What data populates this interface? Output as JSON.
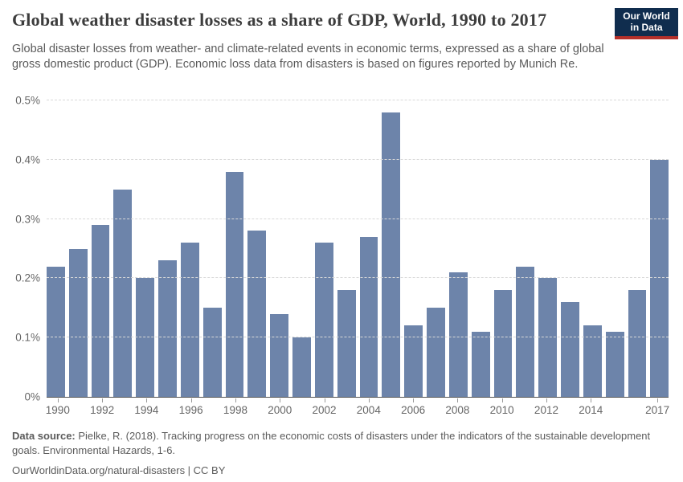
{
  "header": {
    "title": "Global weather disaster losses as a share of GDP, World, 1990 to 2017",
    "subtitle": "Global disaster losses from weather- and climate-related events in economic terms, expressed as a share of global gross domestic product (GDP). Economic loss data from disasters is based on figures reported by Munich Re.",
    "logo": {
      "line1": "Our World",
      "line2": "in Data",
      "bg_color": "#102d4e",
      "accent_color": "#b5302a"
    }
  },
  "chart_data": {
    "type": "bar",
    "title": "Global weather disaster losses as a share of GDP, World, 1990 to 2017",
    "categories": [
      1990,
      1991,
      1992,
      1993,
      1994,
      1995,
      1996,
      1997,
      1998,
      1999,
      2000,
      2001,
      2002,
      2003,
      2004,
      2005,
      2006,
      2007,
      2008,
      2009,
      2010,
      2011,
      2012,
      2013,
      2014,
      2015,
      2016,
      2017
    ],
    "values": [
      0.22,
      0.25,
      0.29,
      0.35,
      0.2,
      0.23,
      0.26,
      0.15,
      0.38,
      0.28,
      0.14,
      0.1,
      0.26,
      0.18,
      0.27,
      0.48,
      0.12,
      0.15,
      0.21,
      0.11,
      0.18,
      0.22,
      0.2,
      0.16,
      0.12,
      0.11,
      0.18,
      0.4
    ],
    "unit": "%",
    "xlabel": "",
    "ylabel": "",
    "ylim": [
      0,
      0.5
    ],
    "y_tick_values": [
      0,
      0.1,
      0.2,
      0.3,
      0.4,
      0.5
    ],
    "y_tick_labels": [
      "0%",
      "0.1%",
      "0.2%",
      "0.3%",
      "0.4%",
      "0.5%"
    ],
    "x_tick_years": [
      1990,
      1992,
      1994,
      1996,
      1998,
      2000,
      2002,
      2004,
      2006,
      2008,
      2010,
      2012,
      2014,
      2017
    ],
    "bar_color": "#6d84aa",
    "grid": true,
    "legend": false
  },
  "footer": {
    "datasource_label": "Data source:",
    "datasource_text": "Pielke, R. (2018). Tracking progress on the economic costs of disasters under the indicators of the sustainable development goals. Environmental Hazards, 1-6.",
    "citation": "OurWorldinData.org/natural-disasters | CC BY"
  }
}
